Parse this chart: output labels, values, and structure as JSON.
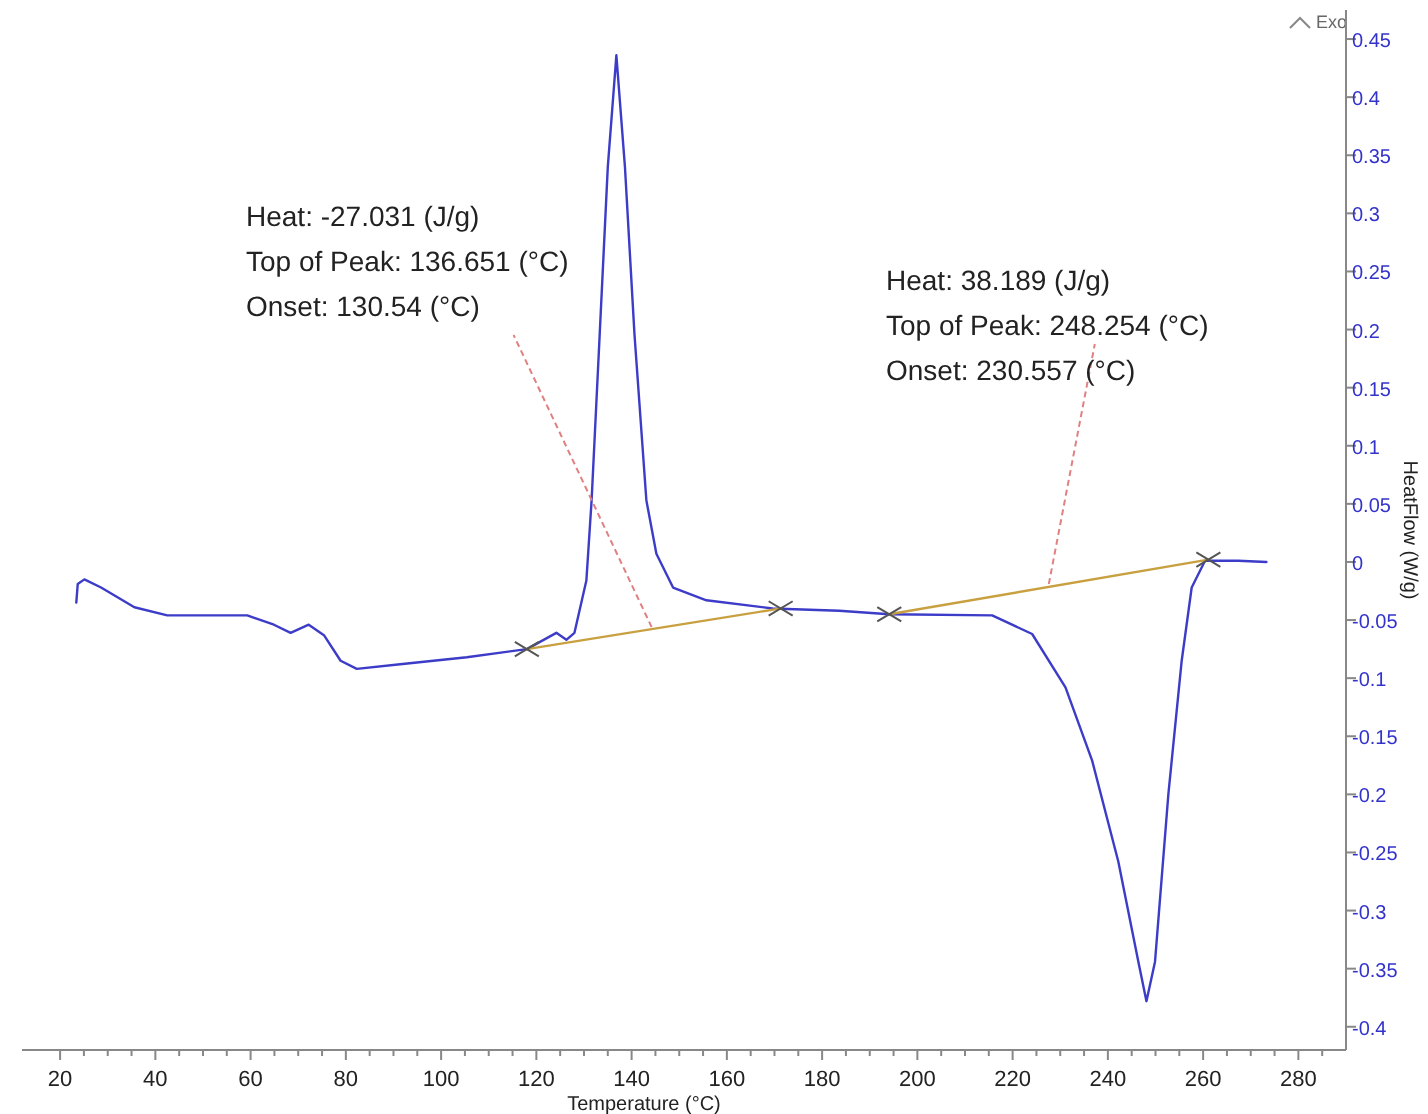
{
  "chart_data": {
    "type": "line",
    "xlabel": "Temperature (°C)",
    "ylabel": "HeatFlow (W/g)",
    "xlim": [
      12,
      290
    ],
    "ylim": [
      -0.42,
      0.475
    ],
    "xticks": [
      20,
      {
        "value": 25,
        "label": null
      },
      {
        "value": 30,
        "label": null
      },
      {
        "value": 35,
        "label": null
      },
      40,
      {
        "value": 45,
        "label": null
      },
      {
        "value": 50,
        "label": null
      },
      {
        "value": 55,
        "label": null
      },
      60,
      {
        "value": 65,
        "label": null
      },
      {
        "value": 70,
        "label": null
      },
      {
        "value": 75,
        "label": null
      },
      80,
      {
        "value": 85,
        "label": null
      },
      {
        "value": 90,
        "label": null
      },
      {
        "value": 95,
        "label": null
      },
      100,
      {
        "value": 105,
        "label": null
      },
      {
        "value": 110,
        "label": null
      },
      {
        "value": 115,
        "label": null
      },
      120,
      {
        "value": 125,
        "label": null
      },
      {
        "value": 130,
        "label": null
      },
      {
        "value": 135,
        "label": null
      },
      140,
      {
        "value": 145,
        "label": null
      },
      {
        "value": 150,
        "label": null
      },
      {
        "value": 155,
        "label": null
      },
      160,
      {
        "value": 165,
        "label": null
      },
      {
        "value": 170,
        "label": null
      },
      {
        "value": 175,
        "label": null
      },
      180,
      {
        "value": 185,
        "label": null
      },
      {
        "value": 190,
        "label": null
      },
      {
        "value": 195,
        "label": null
      },
      200,
      {
        "value": 205,
        "label": null
      },
      {
        "value": 210,
        "label": null
      },
      {
        "value": 215,
        "label": null
      },
      220,
      {
        "value": 225,
        "label": null
      },
      {
        "value": 230,
        "label": null
      },
      {
        "value": 235,
        "label": null
      },
      240,
      {
        "value": 245,
        "label": null
      },
      {
        "value": 250,
        "label": null
      },
      {
        "value": 255,
        "label": null
      },
      260,
      {
        "value": 265,
        "label": null
      },
      {
        "value": 270,
        "label": null
      },
      {
        "value": 275,
        "label": null
      },
      280,
      {
        "value": 285,
        "label": null
      }
    ],
    "yticks": [
      -0.4,
      -0.35,
      -0.3,
      -0.25,
      -0.2,
      -0.15,
      -0.1,
      -0.05,
      0,
      0.05,
      0.1,
      0.15,
      0.2,
      0.25,
      0.3,
      0.35,
      0.4,
      0.45
    ],
    "grid": false,
    "series": [
      {
        "color": "#3c3cc8",
        "marker": "none",
        "x": [
          23.4,
          23.7,
          25.1,
          28.6,
          35.6,
          42.5,
          59.3,
          64.9,
          68.4,
          72.2,
          75.4,
          78.9,
          82.3,
          91.4,
          105.4,
          118.0,
          124.2,
          126.3,
          128.0,
          130.5,
          131.6,
          133.3,
          135.0,
          136.8,
          138.6,
          140.6,
          143.1,
          145.2,
          148.7,
          155.7,
          169.6,
          183.6,
          194.1,
          215.7,
          224.1,
          231.1,
          236.7,
          242.2,
          246.4,
          248.1,
          249.9,
          252.7,
          255.5,
          257.6,
          260.4,
          267.4,
          273.3
        ],
        "values": [
          -0.035,
          -0.019,
          -0.015,
          -0.022,
          -0.039,
          -0.046,
          -0.046,
          -0.054,
          -0.061,
          -0.054,
          -0.063,
          -0.085,
          -0.092,
          -0.088,
          -0.082,
          -0.075,
          -0.061,
          -0.067,
          -0.061,
          -0.016,
          0.053,
          0.196,
          0.34,
          0.436,
          0.34,
          0.196,
          0.053,
          0.007,
          -0.022,
          -0.033,
          -0.04,
          -0.042,
          -0.045,
          -0.046,
          -0.062,
          -0.108,
          -0.171,
          -0.258,
          -0.344,
          -0.378,
          -0.344,
          -0.2,
          -0.085,
          -0.022,
          0.001,
          0.001,
          0
        ]
      },
      {
        "color": "#c8a040",
        "marker": "cross",
        "x": [
          118.0,
          171.3
        ],
        "values": [
          -0.075,
          -0.04
        ]
      },
      {
        "color": "#c8a040",
        "marker": "cross",
        "x": [
          194.1,
          261.1
        ],
        "values": [
          -0.045,
          0.002
        ]
      }
    ],
    "annotations": [
      {
        "text": "Heat: -27.031 (J/g)\nTop of Peak: 136.651 (°C)\nOnset: 130.54 (°C)",
        "x": 144.2,
        "y": -0.056
      },
      {
        "text": "Heat: 38.189 (J/g)\nTop of Peak: 248.254 (°C)\nOnset: 230.557 (°C)",
        "x": 227.6,
        "y": -0.019
      },
      "Exo"
    ]
  }
}
